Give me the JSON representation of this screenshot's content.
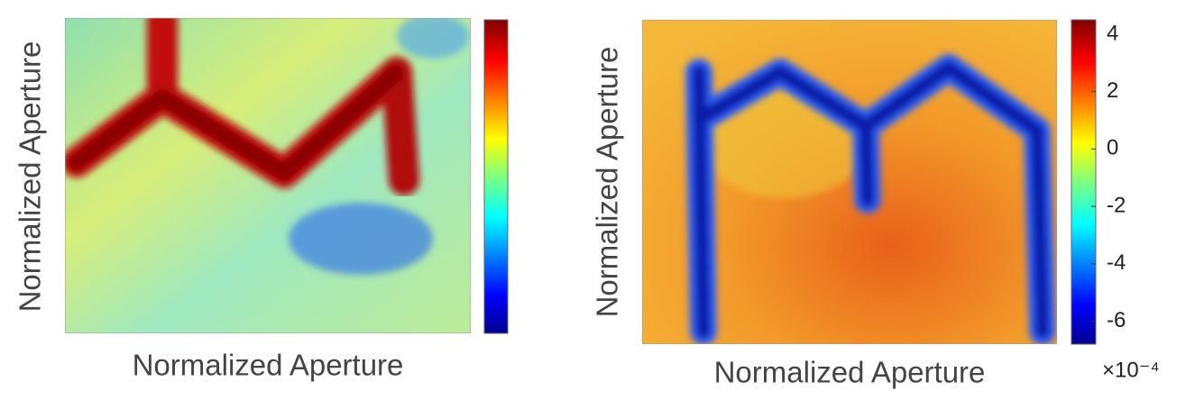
{
  "chart_data": [
    {
      "type": "heatmap",
      "xlabel": "Normalized Aperture",
      "ylabel": "Normalized Aperture"
    },
    {
      "type": "heatmap",
      "xlabel": "Normalized Aperture",
      "ylabel": "Normalized Aperture",
      "colorbar_lim": [
        -6.8,
        4.5
      ],
      "colorbar_ticks": [
        4,
        2,
        0,
        -2,
        -4,
        -6
      ],
      "colorbar_multiplier": "×10⁻⁴"
    }
  ]
}
